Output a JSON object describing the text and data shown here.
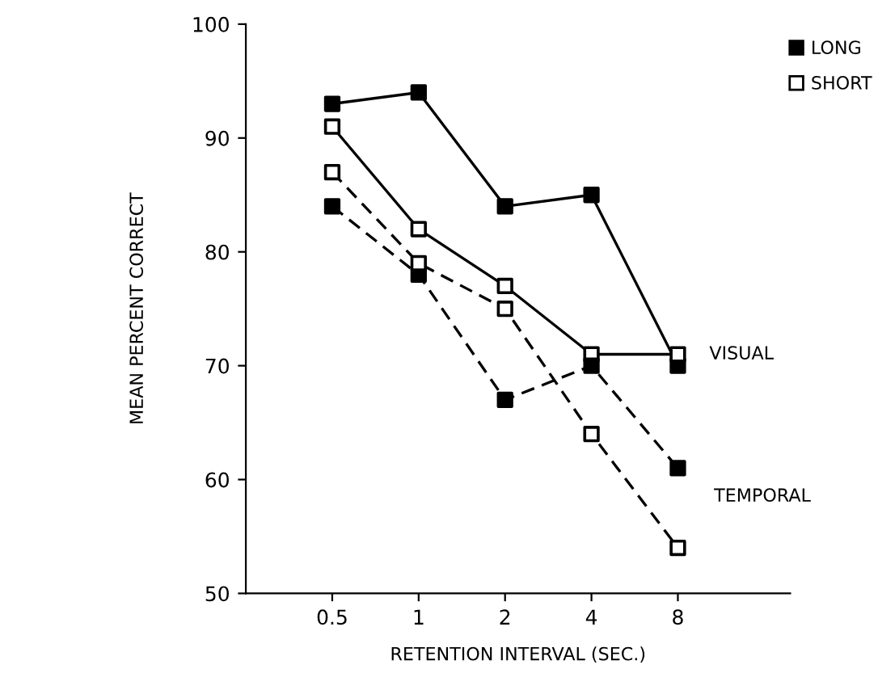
{
  "chart_data": {
    "type": "line",
    "xlabel": "RETENTION INTERVAL (SEC.)",
    "ylabel": "MEAN PERCENT CORRECT",
    "categories": [
      "0.5",
      "1",
      "2",
      "4",
      "8"
    ],
    "ylim": [
      50,
      100
    ],
    "yticks": [
      50,
      60,
      70,
      80,
      90,
      100
    ],
    "grid": false,
    "legend": "top right",
    "marker": "square",
    "series": [
      {
        "name": "LONG",
        "color": "#000000",
        "colors": [
          "#000000",
          "#000000",
          "#000000",
          "#000000",
          "#000000"
        ],
        "line_style": "solid",
        "values": [
          93,
          94,
          84,
          85,
          70
        ]
      },
      {
        "name": "SHORT",
        "color": "#000000",
        "colors": [
          "#ffffff",
          "#ffffff",
          "#ffffff",
          "#ffffff",
          "#ffffff"
        ],
        "line_style": "solid",
        "values": [
          91,
          82,
          77,
          71,
          71
        ]
      },
      {
        "color": "#000000",
        "colors": [
          "#000000",
          "#000000",
          "#000000",
          "#000000",
          "#000000"
        ],
        "line_style": "dashed",
        "values": [
          84,
          78,
          67,
          70,
          61
        ]
      },
      {
        "color": "#000000",
        "colors": [
          "#ffffff",
          "#ffffff",
          "#ffffff",
          "#ffffff",
          "#ffffff"
        ],
        "line_style": "dashed",
        "values": [
          87,
          79,
          75,
          64,
          54
        ]
      }
    ],
    "annotations": [
      {
        "text": "VISUAL",
        "x": "8",
        "y": 71
      },
      "TEMPORAL"
    ]
  }
}
